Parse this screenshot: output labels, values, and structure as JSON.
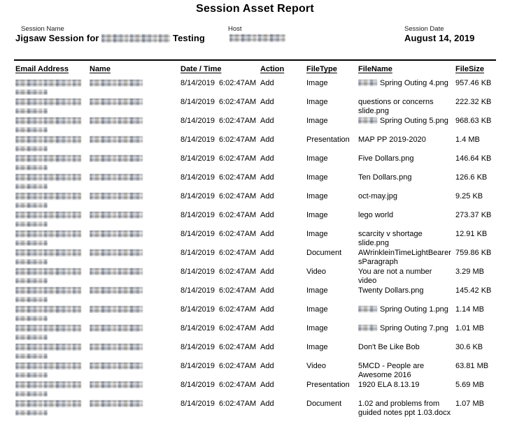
{
  "title": "Session Asset Report",
  "session_info": {
    "session_name_label": "Session Name",
    "session_name_prefix": "Jigsaw Session for",
    "session_name_suffix": "Testing",
    "session_name_redacted": true,
    "host_label": "Host",
    "host_redacted": true,
    "session_date_label": "Session Date",
    "session_date_value": "August 14, 2019"
  },
  "table": {
    "headers": [
      "Email Address",
      "Name",
      "Date / Time",
      "Action",
      "FileType",
      "FileName",
      "FileSize"
    ],
    "rows": [
      {
        "email_redacted": true,
        "name_redacted": true,
        "date": "8/14/2019",
        "time": "6:02:47AM",
        "action": "Add",
        "filetype": "Image",
        "filename_redacted_prefix": true,
        "filename": "Spring Outing 4.png",
        "filesize": "957.46 KB"
      },
      {
        "email_redacted": true,
        "name_redacted": true,
        "date": "8/14/2019",
        "time": "6:02:47AM",
        "action": "Add",
        "filetype": "Image",
        "filename_redacted_prefix": false,
        "filename": "questions or concerns slide.png",
        "filesize": "222.32 KB"
      },
      {
        "email_redacted": true,
        "name_redacted": true,
        "date": "8/14/2019",
        "time": "6:02:47AM",
        "action": "Add",
        "filetype": "Image",
        "filename_redacted_prefix": true,
        "filename": "Spring Outing 5.png",
        "filesize": "968.63 KB"
      },
      {
        "email_redacted": true,
        "name_redacted": true,
        "date": "8/14/2019",
        "time": "6:02:47AM",
        "action": "Add",
        "filetype": "Presentation",
        "filename_redacted_prefix": false,
        "filename": "MAP PP 2019-2020",
        "filesize": "1.4 MB"
      },
      {
        "email_redacted": true,
        "name_redacted": true,
        "date": "8/14/2019",
        "time": "6:02:47AM",
        "action": "Add",
        "filetype": "Image",
        "filename_redacted_prefix": false,
        "filename": "Five Dollars.png",
        "filesize": "146.64 KB"
      },
      {
        "email_redacted": true,
        "name_redacted": true,
        "date": "8/14/2019",
        "time": "6:02:47AM",
        "action": "Add",
        "filetype": "Image",
        "filename_redacted_prefix": false,
        "filename": "Ten Dollars.png",
        "filesize": "126.6 KB"
      },
      {
        "email_redacted": true,
        "name_redacted": true,
        "date": "8/14/2019",
        "time": "6:02:47AM",
        "action": "Add",
        "filetype": "Image",
        "filename_redacted_prefix": false,
        "filename": "oct-may.jpg",
        "filesize": "9.25 KB"
      },
      {
        "email_redacted": true,
        "name_redacted": true,
        "date": "8/14/2019",
        "time": "6:02:47AM",
        "action": "Add",
        "filetype": "Image",
        "filename_redacted_prefix": false,
        "filename": "lego world",
        "filesize": "273.37 KB"
      },
      {
        "email_redacted": true,
        "name_redacted": true,
        "date": "8/14/2019",
        "time": "6:02:47AM",
        "action": "Add",
        "filetype": "Image",
        "filename_redacted_prefix": false,
        "filename": "scarcity v shortage slide.png",
        "filesize": "12.91 KB"
      },
      {
        "email_redacted": true,
        "name_redacted": true,
        "date": "8/14/2019",
        "time": "6:02:47AM",
        "action": "Add",
        "filetype": "Document",
        "filename_redacted_prefix": false,
        "filename": "AWrinkleinTimeLightBearersParagraph",
        "filesize": "759.86 KB"
      },
      {
        "email_redacted": true,
        "name_redacted": true,
        "date": "8/14/2019",
        "time": "6:02:47AM",
        "action": "Add",
        "filetype": "Video",
        "filename_redacted_prefix": false,
        "filename": "You are not a number video",
        "filesize": "3.29 MB"
      },
      {
        "email_redacted": true,
        "name_redacted": true,
        "date": "8/14/2019",
        "time": "6:02:47AM",
        "action": "Add",
        "filetype": "Image",
        "filename_redacted_prefix": false,
        "filename": "Twenty Dollars.png",
        "filesize": "145.42 KB"
      },
      {
        "email_redacted": true,
        "name_redacted": true,
        "date": "8/14/2019",
        "time": "6:02:47AM",
        "action": "Add",
        "filetype": "Image",
        "filename_redacted_prefix": true,
        "filename": "Spring Outing 1.png",
        "filesize": "1.14 MB"
      },
      {
        "email_redacted": true,
        "name_redacted": true,
        "date": "8/14/2019",
        "time": "6:02:47AM",
        "action": "Add",
        "filetype": "Image",
        "filename_redacted_prefix": true,
        "filename": "Spring Outing 7.png",
        "filesize": "1.01 MB"
      },
      {
        "email_redacted": true,
        "name_redacted": true,
        "date": "8/14/2019",
        "time": "6:02:47AM",
        "action": "Add",
        "filetype": "Image",
        "filename_redacted_prefix": false,
        "filename": "Don't Be Like Bob",
        "filesize": "30.6 KB"
      },
      {
        "email_redacted": true,
        "name_redacted": true,
        "date": "8/14/2019",
        "time": "6:02:47AM",
        "action": "Add",
        "filetype": "Video",
        "filename_redacted_prefix": false,
        "filename": "5MCD - People are Awesome 2016",
        "filesize": "63.81 MB"
      },
      {
        "email_redacted": true,
        "name_redacted": true,
        "date": "8/14/2019",
        "time": "6:02:47AM",
        "action": "Add",
        "filetype": "Presentation",
        "filename_redacted_prefix": false,
        "filename": "1920 ELA 8.13.19",
        "filesize": "5.69 MB"
      },
      {
        "email_redacted": true,
        "name_redacted": true,
        "date": "8/14/2019",
        "time": "6:02:47AM",
        "action": "Add",
        "filetype": "Document",
        "filename_redacted_prefix": false,
        "filename": "1.02 and problems from guided notes ppt 1.03.docx",
        "filesize": "1.07 MB"
      }
    ]
  }
}
